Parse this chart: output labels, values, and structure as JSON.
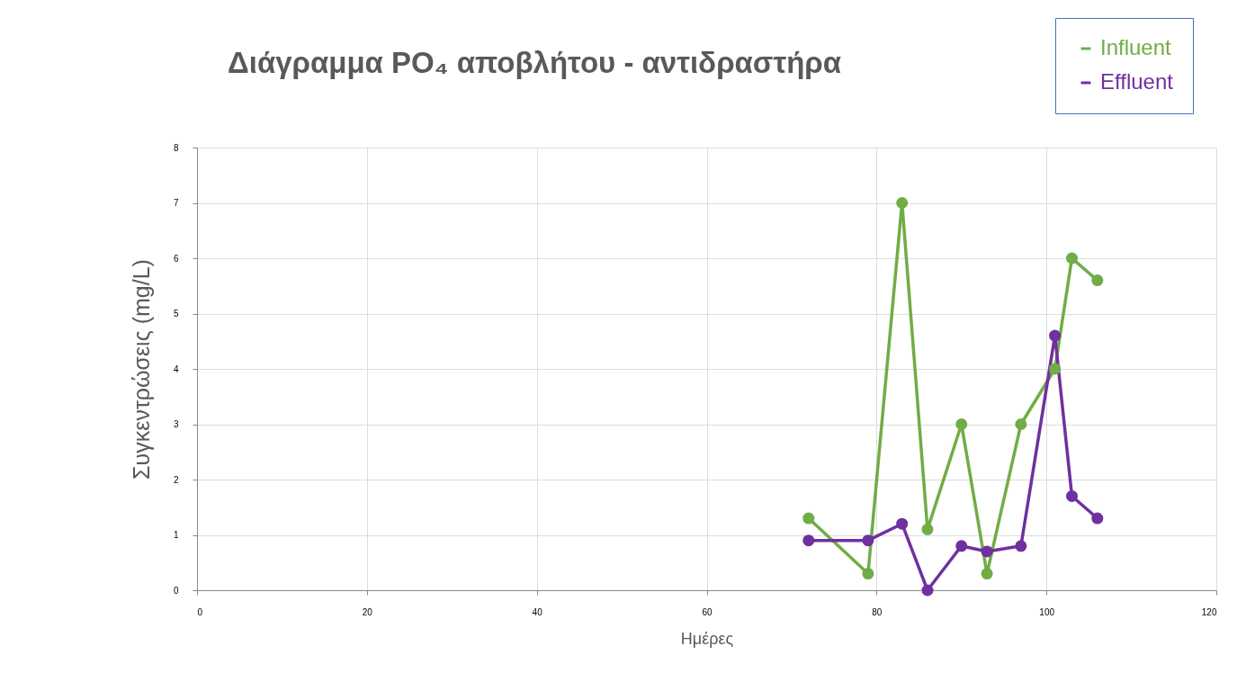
{
  "chart_data": {
    "type": "line",
    "title": "Διάγραμμα PO₄ αποβλήτου - αντιδραστήρα",
    "xlabel": "Ημέρες",
    "ylabel": "Συγκεντρώσεις (mg/L)",
    "x": [
      72,
      79,
      83,
      86,
      90,
      93,
      97,
      101,
      103,
      106
    ],
    "series": [
      {
        "name": "Influent",
        "color": "#70ad47",
        "values": [
          1.3,
          0.3,
          7,
          1.1,
          3,
          0.3,
          3,
          4,
          6,
          5.6
        ]
      },
      {
        "name": "Effluent",
        "color": "#7030a0",
        "values": [
          0.9,
          0.9,
          1.2,
          0,
          0.8,
          0.7,
          0.8,
          4.6,
          1.7,
          1.3
        ]
      }
    ],
    "xlim": [
      0,
      120
    ],
    "xticks": [
      0,
      20,
      40,
      60,
      80,
      100,
      120
    ],
    "ylim": [
      0,
      8
    ],
    "yticks": [
      0,
      1,
      2,
      3,
      4,
      5,
      6,
      7,
      8
    ],
    "grid": true,
    "legend": "top right",
    "marker": "circle",
    "line_style": "solid"
  }
}
